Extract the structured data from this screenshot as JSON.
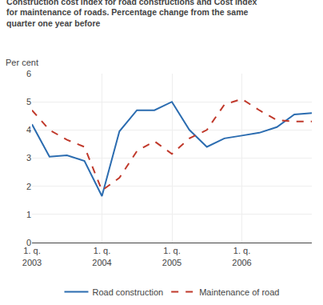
{
  "chart_data": {
    "type": "line",
    "title": "Construction cost index for road constructions and Cost index\nfor maintenance of roads. Percentage change from the same\nquarter one year before",
    "ylabel": "Per cent",
    "categories": [
      "1. q.\n2003",
      null,
      null,
      null,
      "1. q.\n2004",
      null,
      null,
      null,
      "1. q.\n2005",
      null,
      null,
      null,
      "1. q.\n2006",
      null,
      null,
      null,
      null
    ],
    "series": [
      {
        "name": "Road construction",
        "color": "#2b6cb0",
        "line_style": "solid",
        "values": [
          4.2,
          3.05,
          3.1,
          2.9,
          1.65,
          3.95,
          4.7,
          4.7,
          5.0,
          4.0,
          3.4,
          3.7,
          3.8,
          3.9,
          4.1,
          4.55,
          4.6
        ]
      },
      {
        "name": "Maintenance of road",
        "color": "#c0392b",
        "line_style": "dashed",
        "values": [
          4.7,
          4.0,
          3.65,
          3.4,
          1.85,
          2.3,
          3.25,
          3.6,
          3.15,
          3.7,
          4.0,
          4.9,
          5.1,
          4.7,
          4.35,
          4.3,
          4.3
        ]
      }
    ],
    "ylim": [
      0,
      6
    ],
    "yticks": [
      0,
      1,
      2,
      3,
      4,
      5,
      6
    ],
    "grid": true,
    "legend": "bottom"
  }
}
